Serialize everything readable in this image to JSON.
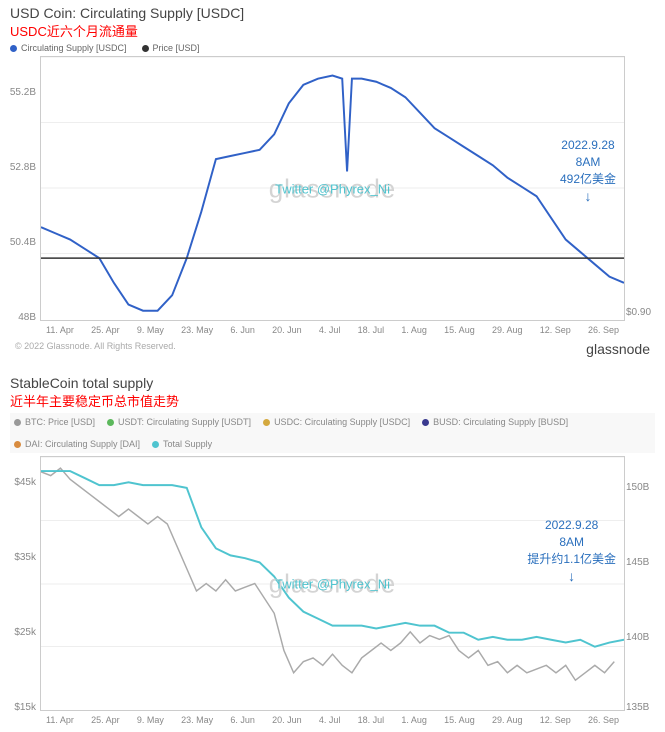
{
  "chart1": {
    "title": "USD Coin: Circulating Supply [USDC]",
    "subtitle": "USDC近六个月流通量",
    "legend": [
      {
        "label": "Circulating Supply [USDC]",
        "color": "#3061c7"
      },
      {
        "label": "Price [USD]",
        "color": "#333333"
      }
    ],
    "watermark": "glassnode",
    "twitter": "Twitter @Phyrex_Ni",
    "annotation_line1": "2022.9.28",
    "annotation_line2": "8AM",
    "annotation_line3": "492亿美金",
    "y_ticks": [
      "55.2B",
      "52.8B",
      "50.4B",
      "48B"
    ],
    "y_ticks_right": [
      "$0.90",
      "$0.90"
    ],
    "x_ticks": [
      "11. Apr",
      "25. Apr",
      "9. May",
      "23. May",
      "6. Jun",
      "20. Jun",
      "4. Jul",
      "18. Jul",
      "1. Aug",
      "15. Aug",
      "29. Aug",
      "12. Sep",
      "26. Sep"
    ],
    "line_color": "#3061c7",
    "price_line_color": "#333333",
    "background_color": "#ffffff",
    "grid_color": "#eeeeee",
    "series": [
      [
        0,
        51.0
      ],
      [
        3,
        50.8
      ],
      [
        6,
        50.6
      ],
      [
        9,
        50.3
      ],
      [
        12,
        50.0
      ],
      [
        15,
        49.2
      ],
      [
        18,
        48.5
      ],
      [
        21,
        48.3
      ],
      [
        24,
        48.3
      ],
      [
        27,
        48.8
      ],
      [
        30,
        50.0
      ],
      [
        33,
        51.5
      ],
      [
        36,
        53.2
      ],
      [
        39,
        53.3
      ],
      [
        42,
        53.4
      ],
      [
        45,
        53.5
      ],
      [
        48,
        54.0
      ],
      [
        51,
        55.0
      ],
      [
        54,
        55.6
      ],
      [
        57,
        55.8
      ],
      [
        60,
        55.9
      ],
      [
        62,
        55.8
      ],
      [
        63,
        52.8
      ],
      [
        64,
        55.8
      ],
      [
        66,
        55.8
      ],
      [
        69,
        55.7
      ],
      [
        72,
        55.5
      ],
      [
        75,
        55.2
      ],
      [
        78,
        54.7
      ],
      [
        81,
        54.2
      ],
      [
        84,
        53.9
      ],
      [
        87,
        53.6
      ],
      [
        90,
        53.3
      ],
      [
        93,
        53.0
      ],
      [
        96,
        52.6
      ],
      [
        99,
        52.3
      ],
      [
        102,
        52.0
      ],
      [
        105,
        51.3
      ],
      [
        108,
        50.6
      ],
      [
        111,
        50.2
      ],
      [
        114,
        49.8
      ],
      [
        117,
        49.4
      ],
      [
        120,
        49.2
      ]
    ],
    "y_domain": [
      48,
      56.5
    ],
    "price_line_y": 50.0
  },
  "copyright_text": "© 2022 Glassnode. All Rights Reserved.",
  "brand": "glassnode",
  "chart2": {
    "title": "StableCoin total supply",
    "subtitle": "近半年主要稳定币总市值走势",
    "legend": [
      {
        "label": "BTC: Price [USD]",
        "color": "#999999"
      },
      {
        "label": "USDT: Circulating Supply [USDT]",
        "color": "#5cb85c"
      },
      {
        "label": "USDC: Circulating Supply [USDC]",
        "color": "#d4a93f"
      },
      {
        "label": "BUSD: Circulating Supply [BUSD]",
        "color": "#3a3a8f"
      },
      {
        "label": "DAI: Circulating Supply [DAI]",
        "color": "#d88b3f"
      },
      {
        "label": "Total Supply",
        "color": "#4fc4cf"
      }
    ],
    "watermark": "glassnode",
    "twitter": "Twitter @Phyrex_Ni",
    "annotation_line1": "2022.9.28",
    "annotation_line2": "8AM",
    "annotation_line3": "提升约1.1亿美金",
    "y_ticks": [
      "$45k",
      "$35k",
      "$25k",
      "$15k"
    ],
    "y_ticks_right": [
      "150B",
      "145B",
      "140B",
      "135B"
    ],
    "x_ticks": [
      "11. Apr",
      "25. Apr",
      "9. May",
      "23. May",
      "6. Jun",
      "20. Jun",
      "4. Jul",
      "18. Jul",
      "1. Aug",
      "15. Aug",
      "29. Aug",
      "12. Sep",
      "26. Sep"
    ],
    "btc_color": "#aaaaaa",
    "total_color": "#4fc4cf",
    "background_color": "#ffffff",
    "btc_series": [
      [
        0,
        46
      ],
      [
        2,
        45.5
      ],
      [
        4,
        46.5
      ],
      [
        6,
        45
      ],
      [
        8,
        44
      ],
      [
        10,
        43
      ],
      [
        12,
        42
      ],
      [
        14,
        41
      ],
      [
        16,
        40
      ],
      [
        18,
        41
      ],
      [
        20,
        40
      ],
      [
        22,
        39
      ],
      [
        24,
        40
      ],
      [
        26,
        39
      ],
      [
        28,
        36
      ],
      [
        30,
        33
      ],
      [
        32,
        30
      ],
      [
        34,
        31
      ],
      [
        36,
        30
      ],
      [
        38,
        31.5
      ],
      [
        40,
        30
      ],
      [
        42,
        30.5
      ],
      [
        44,
        31
      ],
      [
        46,
        29
      ],
      [
        48,
        27
      ],
      [
        50,
        22
      ],
      [
        52,
        19
      ],
      [
        54,
        20.5
      ],
      [
        56,
        21
      ],
      [
        58,
        20
      ],
      [
        60,
        21.5
      ],
      [
        62,
        20
      ],
      [
        64,
        19
      ],
      [
        66,
        21
      ],
      [
        68,
        22
      ],
      [
        70,
        23
      ],
      [
        72,
        22
      ],
      [
        74,
        23
      ],
      [
        76,
        24.5
      ],
      [
        78,
        23
      ],
      [
        80,
        24
      ],
      [
        82,
        23.5
      ],
      [
        84,
        24
      ],
      [
        86,
        22
      ],
      [
        88,
        21
      ],
      [
        90,
        22
      ],
      [
        92,
        20
      ],
      [
        94,
        20.5
      ],
      [
        96,
        19
      ],
      [
        98,
        20
      ],
      [
        100,
        19
      ],
      [
        102,
        19.5
      ],
      [
        104,
        20
      ],
      [
        106,
        19
      ],
      [
        108,
        20
      ],
      [
        110,
        18
      ],
      [
        112,
        19
      ],
      [
        114,
        20
      ],
      [
        116,
        19
      ],
      [
        118,
        20.5
      ]
    ],
    "total_series": [
      [
        0,
        151
      ],
      [
        3,
        151
      ],
      [
        6,
        151
      ],
      [
        9,
        150.5
      ],
      [
        12,
        150
      ],
      [
        15,
        150
      ],
      [
        18,
        150.2
      ],
      [
        21,
        150
      ],
      [
        24,
        150
      ],
      [
        27,
        150
      ],
      [
        30,
        149.8
      ],
      [
        33,
        147
      ],
      [
        36,
        145.5
      ],
      [
        39,
        145
      ],
      [
        42,
        144.8
      ],
      [
        45,
        144.5
      ],
      [
        48,
        143.5
      ],
      [
        51,
        142
      ],
      [
        54,
        141
      ],
      [
        57,
        140.5
      ],
      [
        60,
        140
      ],
      [
        63,
        140
      ],
      [
        66,
        140
      ],
      [
        69,
        139.8
      ],
      [
        72,
        140
      ],
      [
        75,
        140.2
      ],
      [
        78,
        140
      ],
      [
        81,
        140
      ],
      [
        84,
        139.5
      ],
      [
        87,
        139.5
      ],
      [
        90,
        139
      ],
      [
        93,
        139.2
      ],
      [
        96,
        139
      ],
      [
        99,
        139
      ],
      [
        102,
        139.2
      ],
      [
        105,
        139
      ],
      [
        108,
        138.8
      ],
      [
        111,
        139
      ],
      [
        114,
        138.5
      ],
      [
        117,
        138.8
      ],
      [
        120,
        139
      ]
    ],
    "btc_domain": [
      14,
      48
    ],
    "total_domain": [
      134,
      152
    ]
  }
}
